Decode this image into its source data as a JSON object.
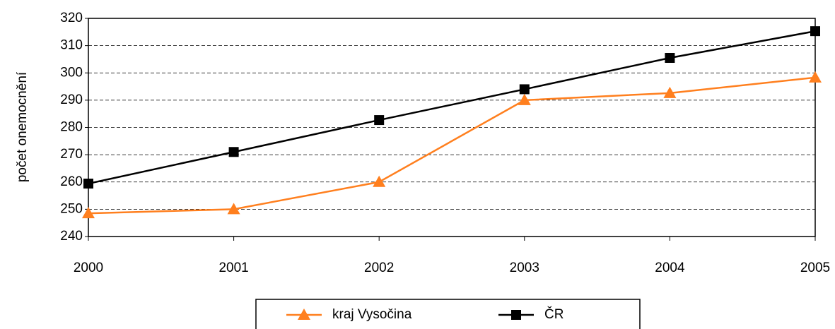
{
  "chart_data": {
    "type": "line",
    "y_label": "počet onemocnění",
    "x": [
      2000,
      2001,
      2002,
      2003,
      2004,
      2005
    ],
    "xlim": [
      2000,
      2005
    ],
    "xticks": [
      2000,
      2001,
      2002,
      2003,
      2004,
      2005
    ],
    "ylim": [
      240,
      320
    ],
    "yticks": [
      240,
      250,
      260,
      270,
      280,
      290,
      300,
      310,
      320
    ],
    "grid": true,
    "legend": "bottom",
    "series": [
      {
        "name": "kraj Vysočina",
        "color": "#ff7f1e",
        "marker": "triangle",
        "values": [
          248.5,
          250,
          260,
          290,
          292.6,
          298.3
        ]
      },
      {
        "name": "ČR",
        "color": "#000000",
        "marker": "square",
        "values": [
          259.4,
          271,
          282.7,
          294,
          305.5,
          315.3
        ]
      }
    ]
  }
}
